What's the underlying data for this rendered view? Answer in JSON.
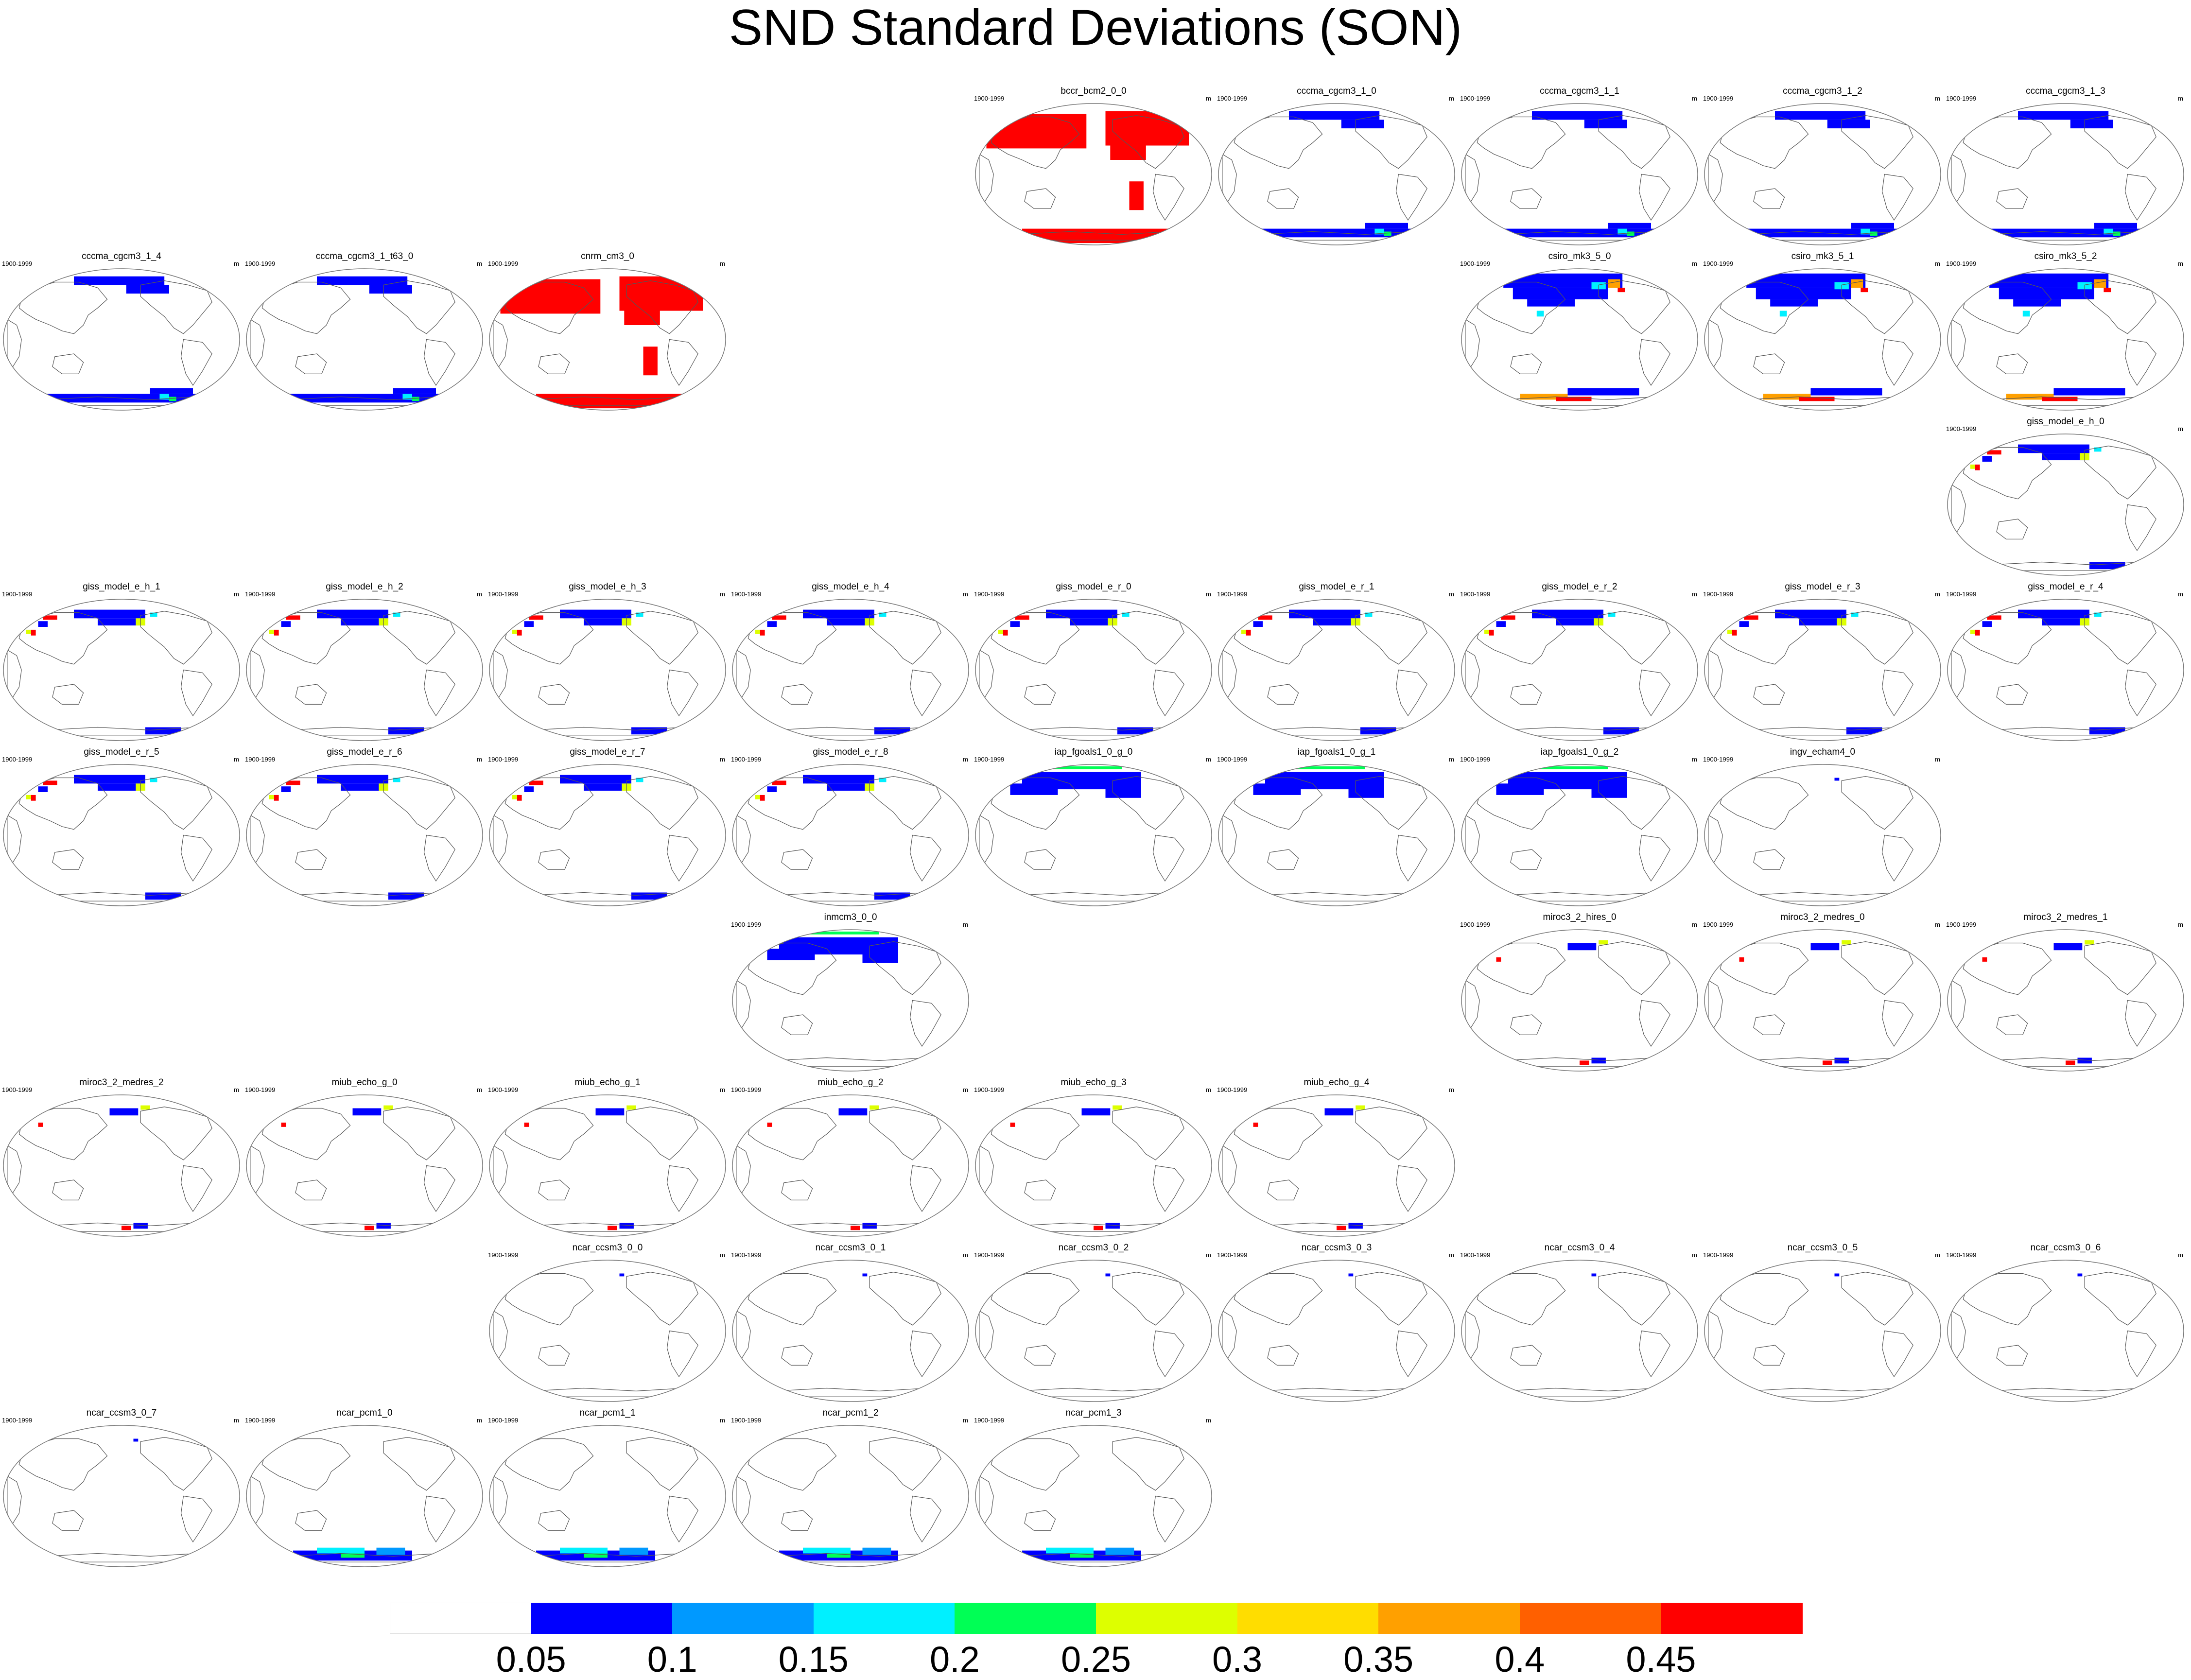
{
  "title": "SND Standard Deviations (SON)",
  "map_projection": "robinson-style world map centered on the Pacific",
  "panel_left_text": "1900-1999",
  "panel_right_text": "m",
  "colorbar": {
    "levels": [
      "0.05",
      "0.1",
      "0.15",
      "0.2",
      "0.25",
      "0.3",
      "0.35",
      "0.4",
      "0.45"
    ],
    "colors": [
      "#ffffff",
      "#0000ff",
      "#0099ff",
      "#00f0ff",
      "#00ff55",
      "#ddff00",
      "#ffdd00",
      "#ffa000",
      "#ff6000",
      "#ff0000"
    ]
  },
  "panels": [
    {
      "name": "bccr_bcm2_0_0",
      "row": 0,
      "col": 4,
      "fill": "red"
    },
    {
      "name": "cccma_cgcm3_1_0",
      "row": 0,
      "col": 5,
      "fill": "blue"
    },
    {
      "name": "cccma_cgcm3_1_1",
      "row": 0,
      "col": 6,
      "fill": "blue"
    },
    {
      "name": "cccma_cgcm3_1_2",
      "row": 0,
      "col": 7,
      "fill": "blue"
    },
    {
      "name": "cccma_cgcm3_1_3",
      "row": 0,
      "col": 8,
      "fill": "blue"
    },
    {
      "name": "cccma_cgcm3_1_4",
      "row": 1,
      "col": 0,
      "fill": "blue"
    },
    {
      "name": "cccma_cgcm3_1_t63_0",
      "row": 1,
      "col": 1,
      "fill": "blue"
    },
    {
      "name": "cnrm_cm3_0",
      "row": 1,
      "col": 2,
      "fill": "red"
    },
    {
      "name": "csiro_mk3_5_0",
      "row": 1,
      "col": 6,
      "fill": "mixed"
    },
    {
      "name": "csiro_mk3_5_1",
      "row": 1,
      "col": 7,
      "fill": "mixed"
    },
    {
      "name": "csiro_mk3_5_2",
      "row": 1,
      "col": 8,
      "fill": "mixed"
    },
    {
      "name": "giss_model_e_h_0",
      "row": 2,
      "col": 8,
      "fill": "sparse"
    },
    {
      "name": "giss_model_e_h_1",
      "row": 3,
      "col": 0,
      "fill": "sparse"
    },
    {
      "name": "giss_model_e_h_2",
      "row": 3,
      "col": 1,
      "fill": "sparse"
    },
    {
      "name": "giss_model_e_h_3",
      "row": 3,
      "col": 2,
      "fill": "sparse"
    },
    {
      "name": "giss_model_e_h_4",
      "row": 3,
      "col": 3,
      "fill": "sparse"
    },
    {
      "name": "giss_model_e_r_0",
      "row": 3,
      "col": 4,
      "fill": "sparse"
    },
    {
      "name": "giss_model_e_r_1",
      "row": 3,
      "col": 5,
      "fill": "sparse"
    },
    {
      "name": "giss_model_e_r_2",
      "row": 3,
      "col": 6,
      "fill": "sparse"
    },
    {
      "name": "giss_model_e_r_3",
      "row": 3,
      "col": 7,
      "fill": "sparse"
    },
    {
      "name": "giss_model_e_r_4",
      "row": 3,
      "col": 8,
      "fill": "sparse"
    },
    {
      "name": "giss_model_e_r_5",
      "row": 4,
      "col": 0,
      "fill": "sparse"
    },
    {
      "name": "giss_model_e_r_6",
      "row": 4,
      "col": 1,
      "fill": "sparse"
    },
    {
      "name": "giss_model_e_r_7",
      "row": 4,
      "col": 2,
      "fill": "sparse"
    },
    {
      "name": "giss_model_e_r_8",
      "row": 4,
      "col": 3,
      "fill": "sparse"
    },
    {
      "name": "iap_fgoals1_0_g_0",
      "row": 4,
      "col": 4,
      "fill": "northblue"
    },
    {
      "name": "iap_fgoals1_0_g_1",
      "row": 4,
      "col": 5,
      "fill": "northblue"
    },
    {
      "name": "iap_fgoals1_0_g_2",
      "row": 4,
      "col": 6,
      "fill": "northblue"
    },
    {
      "name": "ingv_echam4_0",
      "row": 4,
      "col": 7,
      "fill": "none"
    },
    {
      "name": "inmcm3_0_0",
      "row": 5,
      "col": 3,
      "fill": "northblue"
    },
    {
      "name": "miroc3_2_hires_0",
      "row": 5,
      "col": 6,
      "fill": "light"
    },
    {
      "name": "miroc3_2_medres_0",
      "row": 5,
      "col": 7,
      "fill": "light"
    },
    {
      "name": "miroc3_2_medres_1",
      "row": 5,
      "col": 8,
      "fill": "light"
    },
    {
      "name": "miroc3_2_medres_2",
      "row": 6,
      "col": 0,
      "fill": "light"
    },
    {
      "name": "miub_echo_g_0",
      "row": 6,
      "col": 1,
      "fill": "light"
    },
    {
      "name": "miub_echo_g_1",
      "row": 6,
      "col": 2,
      "fill": "light"
    },
    {
      "name": "miub_echo_g_2",
      "row": 6,
      "col": 3,
      "fill": "light"
    },
    {
      "name": "miub_echo_g_3",
      "row": 6,
      "col": 4,
      "fill": "light"
    },
    {
      "name": "miub_echo_g_4",
      "row": 6,
      "col": 5,
      "fill": "light"
    },
    {
      "name": "ncar_ccsm3_0_0",
      "row": 7,
      "col": 2,
      "fill": "none"
    },
    {
      "name": "ncar_ccsm3_0_1",
      "row": 7,
      "col": 3,
      "fill": "none"
    },
    {
      "name": "ncar_ccsm3_0_2",
      "row": 7,
      "col": 4,
      "fill": "none"
    },
    {
      "name": "ncar_ccsm3_0_3",
      "row": 7,
      "col": 5,
      "fill": "none"
    },
    {
      "name": "ncar_ccsm3_0_4",
      "row": 7,
      "col": 6,
      "fill": "none"
    },
    {
      "name": "ncar_ccsm3_0_5",
      "row": 7,
      "col": 7,
      "fill": "none"
    },
    {
      "name": "ncar_ccsm3_0_6",
      "row": 7,
      "col": 8,
      "fill": "none"
    },
    {
      "name": "ncar_ccsm3_0_7",
      "row": 8,
      "col": 0,
      "fill": "none"
    },
    {
      "name": "ncar_pcm1_0",
      "row": 8,
      "col": 1,
      "fill": "southmix"
    },
    {
      "name": "ncar_pcm1_1",
      "row": 8,
      "col": 2,
      "fill": "southmix"
    },
    {
      "name": "ncar_pcm1_2",
      "row": 8,
      "col": 3,
      "fill": "southmix"
    },
    {
      "name": "ncar_pcm1_3",
      "row": 8,
      "col": 4,
      "fill": "southmix"
    }
  ]
}
